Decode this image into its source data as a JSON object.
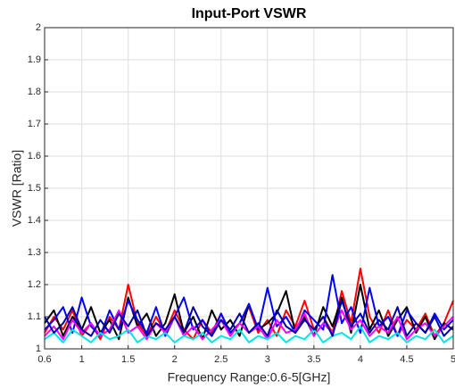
{
  "chart_data": {
    "type": "line",
    "title": "Input-Port VSWR",
    "x_label": "Frequency Range:0.6-5[GHz]",
    "y_label": "VSWR [Ratio]",
    "x": [
      0.6,
      0.7,
      0.8,
      0.9,
      1,
      1.1,
      1.2,
      1.3,
      1.4,
      1.5,
      1.6,
      1.7,
      1.8,
      1.9,
      2,
      2.1,
      2.2,
      2.3,
      2.4,
      2.5,
      2.6,
      2.7,
      2.8,
      2.9,
      3,
      3.1,
      3.2,
      3.3,
      3.4,
      3.5,
      3.6,
      3.7,
      3.8,
      3.9,
      4,
      4.1,
      4.2,
      4.3,
      4.4,
      4.5,
      4.6,
      4.7,
      4.8,
      4.9,
      5
    ],
    "series": [
      {
        "color": "#ff0000",
        "values": [
          1.05,
          1.1,
          1.06,
          1.12,
          1.04,
          1.08,
          1.03,
          1.1,
          1.06,
          1.2,
          1.08,
          1.04,
          1.1,
          1.05,
          1.12,
          1.06,
          1.03,
          1.09,
          1.05,
          1.11,
          1.04,
          1.08,
          1.13,
          1.05,
          1.09,
          1.04,
          1.12,
          1.07,
          1.15,
          1.06,
          1.1,
          1.05,
          1.18,
          1.08,
          1.25,
          1.1,
          1.05,
          1.12,
          1.04,
          1.09,
          1.06,
          1.11,
          1.04,
          1.08,
          1.15
        ]
      },
      {
        "color": "#000000",
        "values": [
          1.08,
          1.12,
          1.04,
          1.1,
          1.06,
          1.13,
          1.05,
          1.09,
          1.03,
          1.16,
          1.07,
          1.11,
          1.04,
          1.08,
          1.17,
          1.05,
          1.1,
          1.03,
          1.12,
          1.06,
          1.09,
          1.04,
          1.14,
          1.06,
          1.08,
          1.11,
          1.18,
          1.05,
          1.1,
          1.04,
          1.13,
          1.07,
          1.16,
          1.05,
          1.2,
          1.06,
          1.12,
          1.04,
          1.09,
          1.13,
          1.05,
          1.1,
          1.03,
          1.08,
          1.06
        ]
      },
      {
        "color": "#0000ff",
        "values": [
          1.06,
          1.09,
          1.13,
          1.05,
          1.16,
          1.07,
          1.04,
          1.12,
          1.06,
          1.15,
          1.09,
          1.05,
          1.13,
          1.04,
          1.1,
          1.16,
          1.06,
          1.09,
          1.04,
          1.11,
          1.05,
          1.08,
          1.14,
          1.06,
          1.19,
          1.07,
          1.1,
          1.05,
          1.12,
          1.09,
          1.06,
          1.23,
          1.08,
          1.13,
          1.05,
          1.19,
          1.07,
          1.1,
          1.04,
          1.12,
          1.08,
          1.05,
          1.11,
          1.06,
          1.09
        ]
      },
      {
        "color": "#ff00ff",
        "values": [
          1.04,
          1.07,
          1.03,
          1.09,
          1.05,
          1.08,
          1.04,
          1.06,
          1.12,
          1.05,
          1.07,
          1.03,
          1.08,
          1.05,
          1.1,
          1.04,
          1.07,
          1.03,
          1.06,
          1.09,
          1.04,
          1.08,
          1.05,
          1.07,
          1.03,
          1.09,
          1.05,
          1.06,
          1.11,
          1.04,
          1.08,
          1.05,
          1.12,
          1.06,
          1.09,
          1.04,
          1.07,
          1.05,
          1.1,
          1.03,
          1.06,
          1.08,
          1.04,
          1.07,
          1.1
        ]
      },
      {
        "color": "#00e5e5",
        "values": [
          1.03,
          1.05,
          1.02,
          1.06,
          1.04,
          1.02,
          1.05,
          1.03,
          1.04,
          1.06,
          1.02,
          1.04,
          1.03,
          1.05,
          1.02,
          1.04,
          1.03,
          1.05,
          1.02,
          1.04,
          1.03,
          1.06,
          1.02,
          1.04,
          1.03,
          1.05,
          1.02,
          1.04,
          1.03,
          1.06,
          1.02,
          1.04,
          1.05,
          1.03,
          1.07,
          1.02,
          1.04,
          1.03,
          1.05,
          1.02,
          1.04,
          1.03,
          1.06,
          1.02,
          1.04
        ]
      },
      {
        "color": "#0000aa",
        "values": [
          1.1,
          1.05,
          1.08,
          1.13,
          1.06,
          1.04,
          1.09,
          1.05,
          1.11,
          1.07,
          1.12,
          1.04,
          1.08,
          1.06,
          1.1,
          1.05,
          1.13,
          1.07,
          1.04,
          1.09,
          1.06,
          1.11,
          1.05,
          1.08,
          1.04,
          1.12,
          1.07,
          1.05,
          1.09,
          1.06,
          1.1,
          1.04,
          1.15,
          1.07,
          1.11,
          1.05,
          1.09,
          1.06,
          1.13,
          1.04,
          1.08,
          1.05,
          1.1,
          1.04,
          1.07
        ]
      }
    ],
    "xlim": [
      0.6,
      5
    ],
    "xticks": [
      0.6,
      1,
      1.5,
      2,
      2.5,
      3,
      3.5,
      4,
      4.5,
      5
    ],
    "ylim": [
      1,
      2
    ],
    "yticks": [
      1,
      1.1,
      1.2,
      1.3,
      1.4,
      1.5,
      1.6,
      1.7,
      1.8,
      1.9,
      2
    ],
    "grid": true
  }
}
